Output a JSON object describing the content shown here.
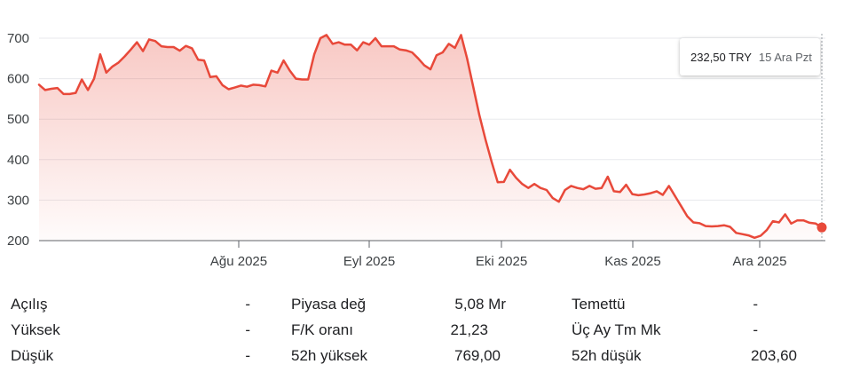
{
  "chart_data": {
    "type": "area",
    "series": [
      {
        "values": [
          585,
          572,
          575,
          577,
          562,
          562,
          565,
          598,
          572,
          600,
          660,
          615,
          630,
          640,
          655,
          672,
          690,
          668,
          697,
          693,
          680,
          678,
          678,
          669,
          681,
          675,
          647,
          645,
          604,
          606,
          584,
          574,
          578,
          583,
          580,
          585,
          584,
          581,
          620,
          615,
          645,
          620,
          600,
          598,
          598,
          660,
          700,
          708,
          686,
          690,
          684,
          684,
          670,
          690,
          684,
          700,
          680,
          680,
          680,
          672,
          670,
          665,
          650,
          633,
          623,
          658,
          665,
          686,
          676,
          708,
          650,
          580,
          510,
          450,
          395,
          344,
          345,
          375,
          355,
          340,
          330,
          340,
          330,
          325,
          305,
          296,
          325,
          335,
          330,
          327,
          335,
          328,
          330,
          358,
          322,
          320,
          338,
          315,
          312,
          314,
          317,
          322,
          313,
          335,
          310,
          285,
          260,
          245,
          243,
          236,
          235,
          236,
          238,
          234,
          219,
          216,
          213,
          207,
          212,
          226,
          248,
          245,
          265,
          242,
          250,
          250,
          244,
          242,
          232.5
        ]
      }
    ],
    "x_ticks": [
      "Ağu 2025",
      "Eyl 2025",
      "Eki 2025",
      "Kas 2025",
      "Ara 2025"
    ],
    "y_ticks": [
      "700",
      "600",
      "500",
      "400",
      "300",
      "200"
    ],
    "ylim": [
      200,
      700
    ],
    "grid": true,
    "line_color": "#e8493a",
    "fill_color": "#e8493a"
  },
  "tooltip": {
    "price": "232,50 TRY",
    "date": "15 Ara Pzt"
  },
  "stats": {
    "rows": [
      {
        "l1": "Açılış",
        "v1": "-",
        "l2": "Piyasa değ",
        "v2": "5,08 Mr",
        "l3": "Temettü",
        "v3": "-"
      },
      {
        "l1": "Yüksek",
        "v1": "-",
        "l2": "F/K oranı",
        "v2": "21,23",
        "l3": "Üç Ay Tm Mk",
        "v3": "-"
      },
      {
        "l1": "Düşük",
        "v1": "-",
        "l2": "52h yüksek",
        "v2": "769,00",
        "l3": "52h düşük",
        "v3": "203,60"
      }
    ]
  }
}
